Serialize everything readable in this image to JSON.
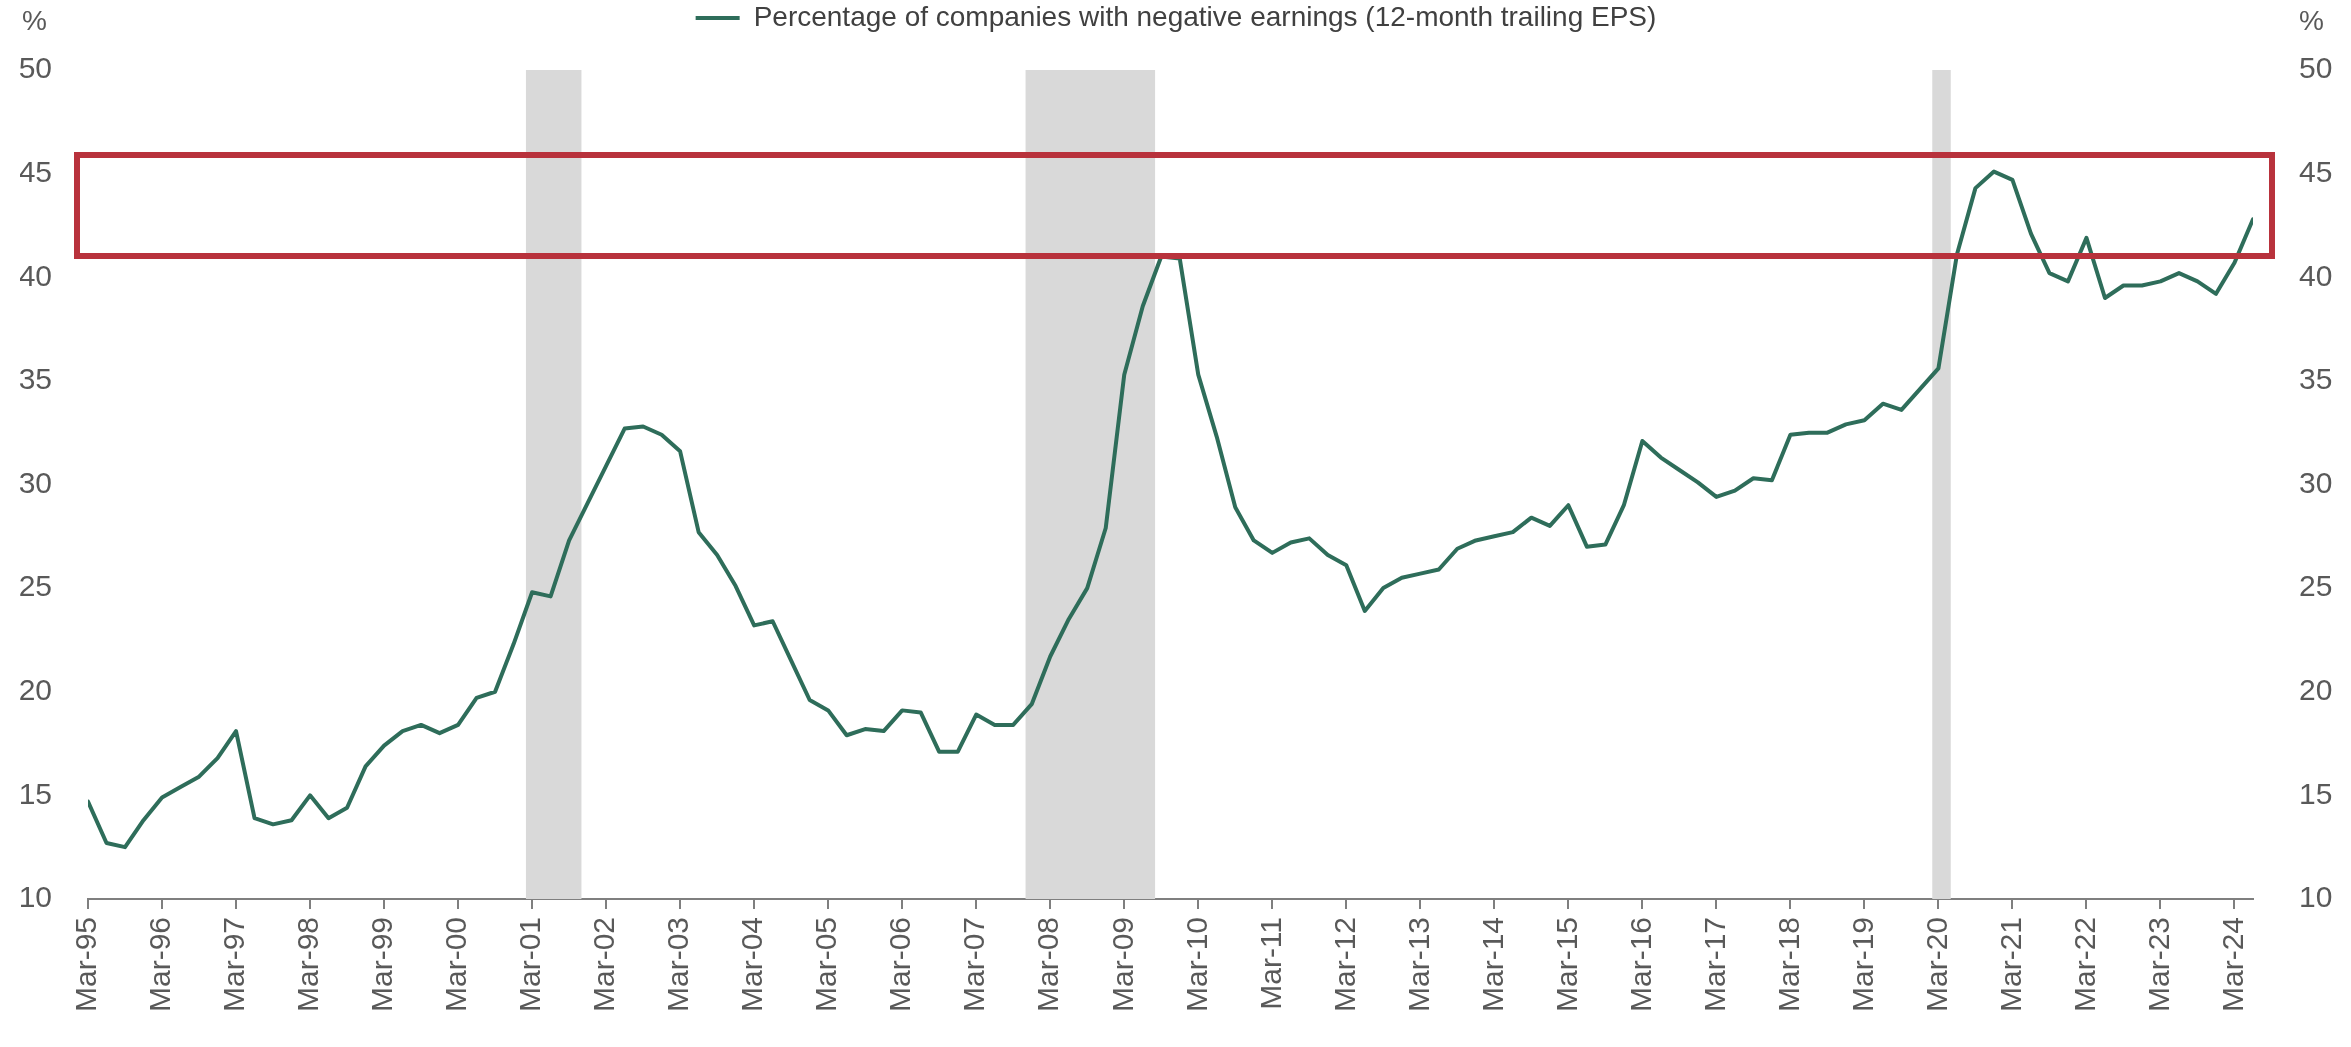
{
  "chart_data": {
    "type": "line",
    "x": [
      "1995-03",
      "1995-06",
      "1995-09",
      "1995-12",
      "1996-03",
      "1996-06",
      "1996-09",
      "1996-12",
      "1997-03",
      "1997-06",
      "1997-09",
      "1997-12",
      "1998-03",
      "1998-06",
      "1998-09",
      "1998-12",
      "1999-03",
      "1999-06",
      "1999-09",
      "1999-12",
      "2000-03",
      "2000-06",
      "2000-09",
      "2000-12",
      "2001-03",
      "2001-06",
      "2001-09",
      "2001-12",
      "2002-03",
      "2002-06",
      "2002-09",
      "2002-12",
      "2003-03",
      "2003-06",
      "2003-09",
      "2003-12",
      "2004-03",
      "2004-06",
      "2004-09",
      "2004-12",
      "2005-03",
      "2005-06",
      "2005-09",
      "2005-12",
      "2006-03",
      "2006-06",
      "2006-09",
      "2006-12",
      "2007-03",
      "2007-06",
      "2007-09",
      "2007-12",
      "2008-03",
      "2008-06",
      "2008-09",
      "2008-12",
      "2009-03",
      "2009-06",
      "2009-09",
      "2009-12",
      "2010-03",
      "2010-06",
      "2010-09",
      "2010-12",
      "2011-03",
      "2011-06",
      "2011-09",
      "2011-12",
      "2012-03",
      "2012-06",
      "2012-09",
      "2012-12",
      "2013-03",
      "2013-06",
      "2013-09",
      "2013-12",
      "2014-03",
      "2014-06",
      "2014-09",
      "2014-12",
      "2015-03",
      "2015-06",
      "2015-09",
      "2015-12",
      "2016-03",
      "2016-06",
      "2016-09",
      "2016-12",
      "2017-03",
      "2017-06",
      "2017-09",
      "2017-12",
      "2018-03",
      "2018-06",
      "2018-09",
      "2018-12",
      "2019-03",
      "2019-06",
      "2019-09",
      "2019-12",
      "2020-03",
      "2020-06",
      "2020-09",
      "2020-12",
      "2021-03",
      "2021-06",
      "2021-09",
      "2021-12",
      "2022-03",
      "2022-06",
      "2022-09",
      "2022-12",
      "2023-03",
      "2023-06",
      "2023-09",
      "2023-12",
      "2024-03",
      "2024-06"
    ],
    "series": [
      {
        "name": "Percentage of companies with negative earnings (12-month trailing EPS)",
        "color": "#2e6d5a",
        "values": [
          14.7,
          12.7,
          12.5,
          13.8,
          14.9,
          15.4,
          15.9,
          16.8,
          18.1,
          13.9,
          13.6,
          13.8,
          15.0,
          13.9,
          14.4,
          16.4,
          17.4,
          18.1,
          18.4,
          18.0,
          18.4,
          19.7,
          20.0,
          22.3,
          24.8,
          24.6,
          27.3,
          29.1,
          30.9,
          32.7,
          32.8,
          32.4,
          31.6,
          27.7,
          26.6,
          25.1,
          23.2,
          23.4,
          21.5,
          19.6,
          19.1,
          17.9,
          18.2,
          18.1,
          19.1,
          19.0,
          17.1,
          17.1,
          18.9,
          18.4,
          18.4,
          19.4,
          21.7,
          23.5,
          25.0,
          27.9,
          35.3,
          38.6,
          41.0,
          40.9,
          35.3,
          32.3,
          28.9,
          27.3,
          26.7,
          27.2,
          27.4,
          26.6,
          26.1,
          23.9,
          25.0,
          25.5,
          25.7,
          25.9,
          26.9,
          27.3,
          27.5,
          27.7,
          28.4,
          28.0,
          29.0,
          27.0,
          27.1,
          29.0,
          32.1,
          31.3,
          30.7,
          30.1,
          29.4,
          29.7,
          30.3,
          30.2,
          32.4,
          32.5,
          32.5,
          32.9,
          33.1,
          33.9,
          33.6,
          34.6,
          35.6,
          41.1,
          44.3,
          45.1,
          44.7,
          42.1,
          40.2,
          39.8,
          41.9,
          39.0,
          39.6,
          39.6,
          39.8,
          40.2,
          39.8,
          39.2,
          40.7,
          42.8
        ]
      }
    ],
    "xlim": [
      "1995-03",
      "2024-06"
    ],
    "xticks": [
      {
        "value": "1995-03",
        "label": "Mar-95"
      },
      {
        "value": "1996-03",
        "label": "Mar-96"
      },
      {
        "value": "1997-03",
        "label": "Mar-97"
      },
      {
        "value": "1998-03",
        "label": "Mar-98"
      },
      {
        "value": "1999-03",
        "label": "Mar-99"
      },
      {
        "value": "2000-03",
        "label": "Mar-00"
      },
      {
        "value": "2001-03",
        "label": "Mar-01"
      },
      {
        "value": "2002-03",
        "label": "Mar-02"
      },
      {
        "value": "2003-03",
        "label": "Mar-03"
      },
      {
        "value": "2004-03",
        "label": "Mar-04"
      },
      {
        "value": "2005-03",
        "label": "Mar-05"
      },
      {
        "value": "2006-03",
        "label": "Mar-06"
      },
      {
        "value": "2007-03",
        "label": "Mar-07"
      },
      {
        "value": "2008-03",
        "label": "Mar-08"
      },
      {
        "value": "2009-03",
        "label": "Mar-09"
      },
      {
        "value": "2010-03",
        "label": "Mar-10"
      },
      {
        "value": "2011-03",
        "label": "Mar-11"
      },
      {
        "value": "2012-03",
        "label": "Mar-12"
      },
      {
        "value": "2013-03",
        "label": "Mar-13"
      },
      {
        "value": "2014-03",
        "label": "Mar-14"
      },
      {
        "value": "2015-03",
        "label": "Mar-15"
      },
      {
        "value": "2016-03",
        "label": "Mar-16"
      },
      {
        "value": "2017-03",
        "label": "Mar-17"
      },
      {
        "value": "2018-03",
        "label": "Mar-18"
      },
      {
        "value": "2019-03",
        "label": "Mar-19"
      },
      {
        "value": "2020-03",
        "label": "Mar-20"
      },
      {
        "value": "2021-03",
        "label": "Mar-21"
      },
      {
        "value": "2022-03",
        "label": "Mar-22"
      },
      {
        "value": "2023-03",
        "label": "Mar-23"
      },
      {
        "value": "2024-03",
        "label": "Mar-24"
      }
    ],
    "ylabel": "%",
    "y2label": "%",
    "ylim": [
      10,
      50
    ],
    "yticks": [
      10,
      15,
      20,
      25,
      30,
      35,
      40,
      45,
      50
    ],
    "y2lim": [
      10,
      50
    ],
    "y2ticks": [
      10,
      15,
      20,
      25,
      30,
      35,
      40,
      45,
      50
    ],
    "bands": [
      {
        "axis": "x",
        "from": "2001-02",
        "to": "2001-11",
        "color": "#d9d9d9"
      },
      {
        "axis": "x",
        "from": "2007-11",
        "to": "2009-08",
        "color": "#d9d9d9"
      },
      {
        "axis": "x",
        "from": "2020-02",
        "to": "2020-05",
        "color": "#d9d9d9"
      }
    ],
    "legend": "top"
  }
}
